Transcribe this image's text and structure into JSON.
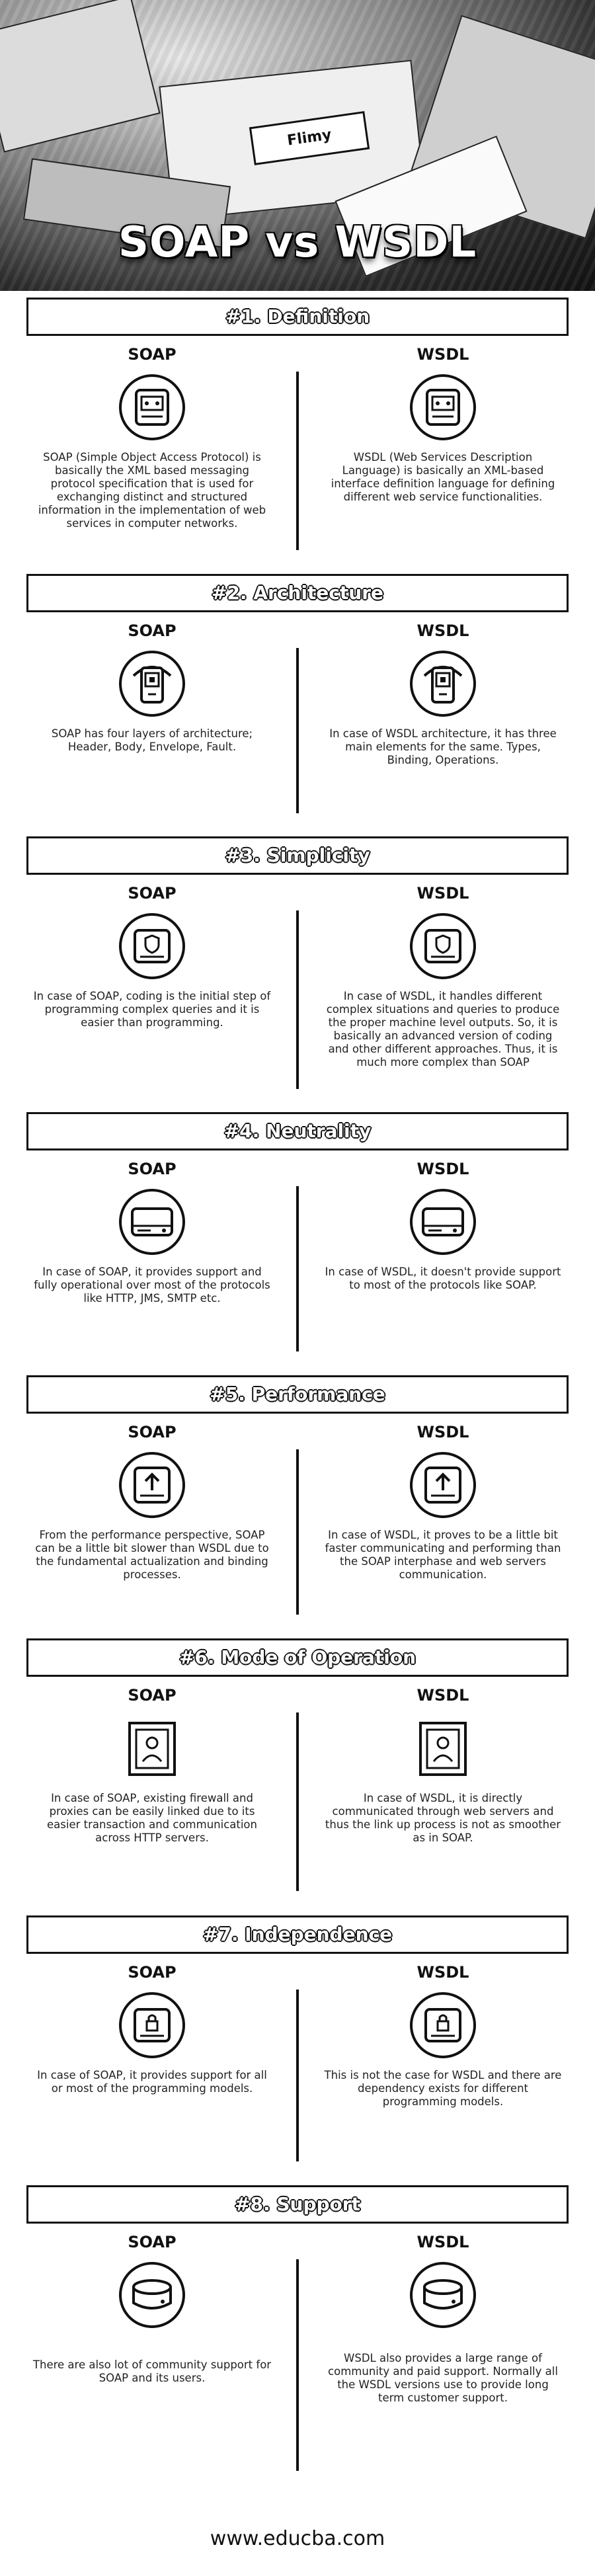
{
  "header": {
    "title": "SOAP vs WSDL",
    "banner_text": "Flimy"
  },
  "columns": {
    "left": "SOAP",
    "right": "WSDL"
  },
  "sections": [
    {
      "title": "#1. Definition",
      "icon": "server-icon",
      "soap": "SOAP (Simple Object Access Protocol) is basically the XML based messaging protocol specification that is used for exchanging distinct and structured information in the implementation of web services in computer networks.",
      "wsdl": "WSDL (Web Services Description Language) is basically an XML-based interface definition language for defining different web service functionalities."
    },
    {
      "title": "#2. Architecture",
      "icon": "mobile-device-icon",
      "soap": "SOAP has four layers of architecture; Header, Body, Envelope, Fault.",
      "wsdl": "In case of WSDL architecture, it has three main elements for the same. Types, Binding, Operations."
    },
    {
      "title": "#3. Simplicity",
      "icon": "secure-drive-icon",
      "soap": "In case of SOAP, coding is the initial step of programming complex queries and it is easier than programming.",
      "wsdl": "In case of WSDL, it handles different complex situations and queries to produce the proper machine level outputs. So, it is basically an advanced version of coding and other different approaches. Thus, it is much more complex than SOAP"
    },
    {
      "title": "#4. Neutrality",
      "icon": "hard-drive-icon",
      "soap": "In case of SOAP, it provides support and fully operational over most of the protocols like HTTP, JMS, SMTP etc.",
      "wsdl": "In case of WSDL, it doesn't provide support to most of the protocols like SOAP."
    },
    {
      "title": "#5. Performance",
      "icon": "upload-drive-icon",
      "soap": "From the performance perspective, SOAP can be a little bit slower than WSDL due to the fundamental actualization and binding processes.",
      "wsdl": "In case of WSDL, it proves to be a little bit faster communicating and performing than the SOAP interphase and web servers communication."
    },
    {
      "title": "#6. Mode of Operation",
      "icon": "user-document-icon",
      "soap": "In case of SOAP, existing firewall and proxies can be easily linked due to its easier transaction and communication across HTTP servers.",
      "wsdl": "In case of WSDL, it is directly communicated through web servers and thus the link up process is not as smoother as in SOAP."
    },
    {
      "title": "#7. Independence",
      "icon": "lock-drive-icon",
      "soap": "In case of SOAP, it provides support for all or most of the programming models.",
      "wsdl": "This is not the case for WSDL and there are dependency exists for different programming models."
    },
    {
      "title": "#8. Support",
      "icon": "disk-drive-icon",
      "soap": "There are also lot of community support for SOAP and its users.",
      "wsdl": "WSDL also provides a large range of community and paid support. Normally all the WSDL versions use to provide long term customer support."
    }
  ],
  "footer": {
    "url": "www.educba.com"
  }
}
